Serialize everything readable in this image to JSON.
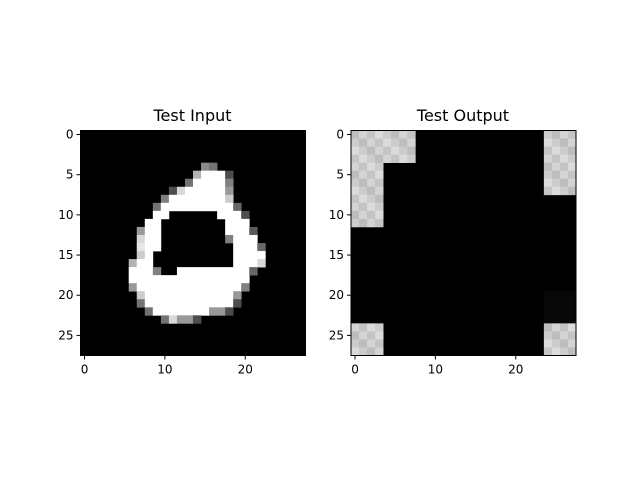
{
  "chart_data": [
    {
      "type": "heatmap",
      "title": "Test Input",
      "xlabel": "",
      "ylabel": "",
      "grid_size": [
        28,
        28
      ],
      "colormap": "gray",
      "value_range": [
        0,
        1
      ],
      "xticks": [
        0,
        10,
        20
      ],
      "yticks": [
        0,
        5,
        10,
        15,
        20,
        25
      ],
      "xlim": [
        -0.5,
        27.5
      ],
      "ylim": [
        27.5,
        -0.5
      ],
      "grid": false,
      "row_runs": [
        [],
        [],
        [],
        [],
        [
          [
            15,
            15,
            0.55
          ],
          [
            16,
            16,
            0.45
          ]
        ],
        [
          [
            14,
            14,
            0.7
          ],
          [
            15,
            17,
            1.0
          ],
          [
            18,
            18,
            0.3
          ]
        ],
        [
          [
            13,
            13,
            0.45
          ],
          [
            14,
            17,
            1.0
          ],
          [
            18,
            18,
            0.5
          ]
        ],
        [
          [
            11,
            11,
            0.3
          ],
          [
            12,
            12,
            0.85
          ],
          [
            13,
            17,
            1.0
          ],
          [
            18,
            18,
            0.6
          ]
        ],
        [
          [
            10,
            10,
            0.5
          ],
          [
            11,
            17,
            1.0
          ],
          [
            18,
            18,
            0.8
          ]
        ],
        [
          [
            9,
            9,
            0.45
          ],
          [
            10,
            18,
            1.0
          ],
          [
            19,
            19,
            0.4
          ]
        ],
        [
          [
            9,
            10,
            1.0
          ],
          [
            17,
            19,
            1.0
          ],
          [
            20,
            20,
            0.3
          ]
        ],
        [
          [
            8,
            9,
            1.0
          ],
          [
            18,
            20,
            1.0
          ]
        ],
        [
          [
            7,
            7,
            0.6
          ],
          [
            8,
            9,
            1.0
          ],
          [
            18,
            20,
            1.0
          ],
          [
            21,
            21,
            0.35
          ]
        ],
        [
          [
            7,
            7,
            0.85
          ],
          [
            8,
            9,
            1.0
          ],
          [
            18,
            18,
            0.5
          ],
          [
            19,
            21,
            1.0
          ]
        ],
        [
          [
            7,
            7,
            0.9
          ],
          [
            8,
            9,
            1.0
          ],
          [
            19,
            21,
            1.0
          ],
          [
            22,
            22,
            0.4
          ]
        ],
        [
          [
            7,
            7,
            0.8
          ],
          [
            8,
            8,
            1.0
          ],
          [
            19,
            22,
            1.0
          ]
        ],
        [
          [
            6,
            6,
            0.7
          ],
          [
            7,
            8,
            1.0
          ],
          [
            19,
            21,
            1.0
          ],
          [
            22,
            22,
            0.85
          ]
        ],
        [
          [
            6,
            8,
            1.0
          ],
          [
            9,
            9,
            0.5
          ],
          [
            12,
            20,
            1.0
          ],
          [
            21,
            21,
            0.4
          ]
        ],
        [
          [
            6,
            8,
            1.0
          ],
          [
            9,
            20,
            1.0
          ]
        ],
        [
          [
            6,
            6,
            0.6
          ],
          [
            7,
            19,
            1.0
          ],
          [
            20,
            20,
            0.5
          ]
        ],
        [
          [
            7,
            7,
            0.8
          ],
          [
            8,
            18,
            1.0
          ],
          [
            19,
            19,
            0.6
          ]
        ],
        [
          [
            7,
            7,
            0.45
          ],
          [
            8,
            18,
            1.0
          ],
          [
            19,
            19,
            0.3
          ]
        ],
        [
          [
            8,
            8,
            0.45
          ],
          [
            9,
            15,
            1.0
          ],
          [
            16,
            17,
            0.6
          ],
          [
            18,
            18,
            0.3
          ]
        ],
        [
          [
            10,
            10,
            0.45
          ],
          [
            11,
            11,
            0.85
          ],
          [
            12,
            13,
            0.6
          ],
          [
            14,
            14,
            0.3
          ]
        ],
        [],
        [],
        [],
        []
      ]
    },
    {
      "type": "heatmap",
      "title": "Test Output",
      "xlabel": "",
      "ylabel": "",
      "grid_size": [
        28,
        28
      ],
      "colormap": "gray",
      "value_range": [
        0,
        1
      ],
      "xticks": [
        0,
        10,
        20
      ],
      "yticks": [
        0,
        5,
        10,
        15,
        20,
        25
      ],
      "xlim": [
        -0.5,
        27.5
      ],
      "ylim": [
        27.5,
        -0.5
      ],
      "grid": false,
      "blocks": [
        {
          "rows": [
            0,
            3
          ],
          "cols": [
            0,
            7
          ],
          "base": 0.8
        },
        {
          "rows": [
            4,
            11
          ],
          "cols": [
            0,
            3
          ],
          "base": 0.8
        },
        {
          "rows": [
            0,
            7
          ],
          "cols": [
            24,
            27
          ],
          "base": 0.8
        },
        {
          "rows": [
            24,
            27
          ],
          "cols": [
            0,
            3
          ],
          "base": 0.8
        },
        {
          "rows": [
            24,
            27
          ],
          "cols": [
            24,
            27
          ],
          "base": 0.8
        },
        {
          "rows": [
            20,
            23
          ],
          "cols": [
            24,
            27
          ],
          "base": 0.03
        }
      ]
    }
  ]
}
